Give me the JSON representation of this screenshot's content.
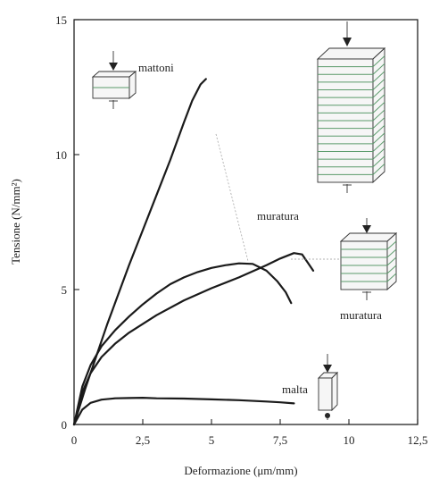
{
  "chart_data": {
    "type": "line",
    "xlabel": "Deformazione (μm/mm)",
    "ylabel": "Tensione (N/mm²)",
    "xlim": [
      0,
      12.5
    ],
    "ylim": [
      0,
      15
    ],
    "x_ticks": [
      "0",
      "2,5",
      "5",
      "7,5",
      "10",
      "12,5"
    ],
    "y_ticks": [
      "0",
      "5",
      "10",
      "15"
    ],
    "grid": false,
    "series": [
      {
        "name": "mattoni",
        "x": [
          0,
          0.4,
          0.8,
          1.2,
          1.6,
          2.0,
          2.5,
          3.0,
          3.5,
          4.0,
          4.3,
          4.6,
          4.8
        ],
        "y": [
          0,
          1.3,
          2.5,
          3.7,
          4.8,
          5.9,
          7.2,
          8.5,
          9.8,
          11.2,
          12.0,
          12.6,
          12.8
        ]
      },
      {
        "name": "muratura",
        "x": [
          0,
          0.3,
          0.6,
          1.0,
          1.5,
          2.0,
          2.5,
          3.0,
          3.5,
          4.0,
          4.5,
          5.0,
          5.5,
          6.0,
          6.5,
          7.0,
          7.4,
          7.7,
          7.9
        ],
        "y": [
          0,
          1.4,
          2.2,
          2.9,
          3.5,
          4.0,
          4.45,
          4.85,
          5.2,
          5.45,
          5.65,
          5.8,
          5.9,
          5.97,
          5.95,
          5.7,
          5.3,
          4.9,
          4.5
        ]
      },
      {
        "name": "muratura",
        "x": [
          0,
          0.3,
          0.6,
          1.0,
          1.5,
          2.0,
          3.0,
          4.0,
          5.0,
          6.0,
          7.0,
          7.5,
          8.0,
          8.3,
          8.5,
          8.7
        ],
        "y": [
          0,
          1.2,
          1.9,
          2.5,
          3.0,
          3.4,
          4.05,
          4.6,
          5.05,
          5.45,
          5.9,
          6.15,
          6.35,
          6.3,
          6.0,
          5.7
        ]
      },
      {
        "name": "malta",
        "x": [
          0,
          0.3,
          0.6,
          1.0,
          1.5,
          2.0,
          2.5,
          3.0,
          4.0,
          5.0,
          6.0,
          7.0,
          7.5,
          8.0
        ],
        "y": [
          0,
          0.55,
          0.8,
          0.92,
          0.97,
          0.98,
          0.99,
          0.97,
          0.96,
          0.93,
          0.9,
          0.85,
          0.82,
          0.78
        ]
      }
    ]
  },
  "annotations": {
    "mattoni": "mattoni",
    "muratura_upper": "muratura",
    "muratura_lower": "muratura",
    "malta": "malta"
  }
}
